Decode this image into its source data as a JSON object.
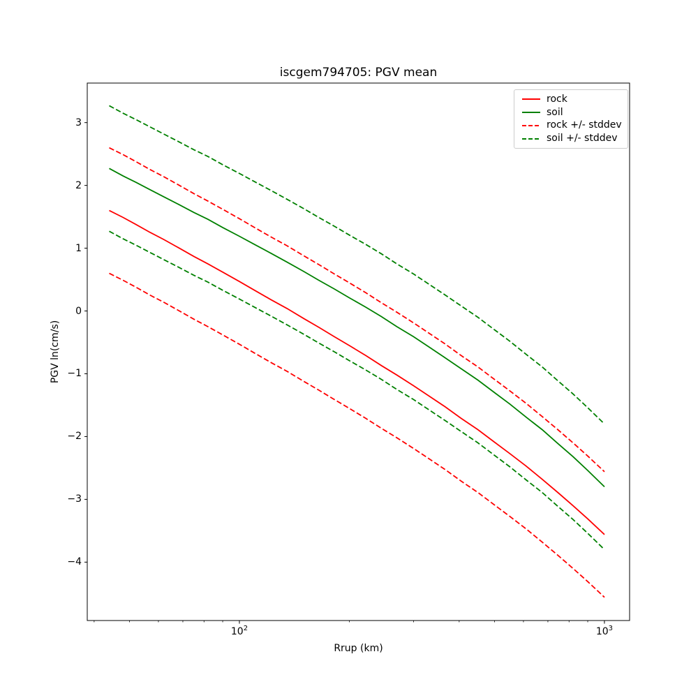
{
  "figure": {
    "title": "iscgem794705: PGV mean",
    "background_color": "#ffffff",
    "axes_edge_color": "#000000"
  },
  "chart_data": {
    "type": "line",
    "title": "iscgem794705: PGV mean",
    "xlabel": "Rrup (km)",
    "ylabel": "PGV ln(cm/s)",
    "xscale": "log",
    "yscale": "linear",
    "grid": false,
    "legend_position": "upper right",
    "xlim": [
      38.3,
      1172
    ],
    "ylim": [
      -4.93,
      3.63
    ],
    "stddev": 1.0,
    "x": [
      44,
      48,
      52,
      57,
      62,
      68,
      75,
      82,
      90,
      100,
      110,
      122,
      135,
      150,
      165,
      182,
      200,
      222,
      245,
      270,
      300,
      330,
      365,
      405,
      450,
      500,
      550,
      610,
      675,
      745,
      820,
      900,
      1000
    ],
    "series": [
      {
        "name": "rock",
        "label": "rock",
        "color": "#ff0000",
        "style": "solid",
        "values": [
          1.6,
          1.49,
          1.38,
          1.25,
          1.14,
          1.01,
          0.87,
          0.75,
          0.62,
          0.47,
          0.33,
          0.18,
          0.04,
          -0.12,
          -0.26,
          -0.41,
          -0.55,
          -0.71,
          -0.87,
          -1.02,
          -1.19,
          -1.35,
          -1.52,
          -1.71,
          -1.89,
          -2.09,
          -2.27,
          -2.47,
          -2.68,
          -2.89,
          -3.1,
          -3.31,
          -3.56
        ]
      },
      {
        "name": "soil",
        "label": "soil",
        "color": "#008000",
        "style": "solid",
        "values": [
          2.27,
          2.15,
          2.05,
          1.93,
          1.82,
          1.7,
          1.57,
          1.46,
          1.33,
          1.19,
          1.06,
          0.92,
          0.78,
          0.63,
          0.49,
          0.35,
          0.21,
          0.06,
          -0.09,
          -0.25,
          -0.41,
          -0.57,
          -0.74,
          -0.92,
          -1.1,
          -1.3,
          -1.48,
          -1.69,
          -1.89,
          -2.11,
          -2.32,
          -2.54,
          -2.8
        ]
      },
      {
        "name": "rock-plus-stddev",
        "label": "rock +/- stddev",
        "color": "#ff0000",
        "style": "dashed",
        "values": [
          2.6,
          2.49,
          2.38,
          2.25,
          2.14,
          2.01,
          1.87,
          1.75,
          1.62,
          1.47,
          1.33,
          1.18,
          1.04,
          0.88,
          0.74,
          0.59,
          0.45,
          0.29,
          0.13,
          -0.02,
          -0.19,
          -0.35,
          -0.52,
          -0.71,
          -0.89,
          -1.09,
          -1.27,
          -1.47,
          -1.68,
          -1.89,
          -2.1,
          -2.31,
          -2.56
        ]
      },
      {
        "name": "rock-minus-stddev",
        "label": "rock +/- stddev",
        "color": "#ff0000",
        "style": "dashed",
        "values": [
          0.6,
          0.49,
          0.38,
          0.25,
          0.14,
          0.01,
          -0.13,
          -0.25,
          -0.38,
          -0.53,
          -0.67,
          -0.82,
          -0.96,
          -1.12,
          -1.26,
          -1.41,
          -1.55,
          -1.71,
          -1.87,
          -2.02,
          -2.19,
          -2.35,
          -2.52,
          -2.71,
          -2.89,
          -3.09,
          -3.27,
          -3.47,
          -3.68,
          -3.89,
          -4.1,
          -4.31,
          -4.56
        ]
      },
      {
        "name": "soil-plus-stddev",
        "label": "soil +/- stddev",
        "color": "#008000",
        "style": "dashed",
        "values": [
          3.27,
          3.15,
          3.05,
          2.93,
          2.82,
          2.7,
          2.57,
          2.46,
          2.33,
          2.19,
          2.06,
          1.92,
          1.78,
          1.63,
          1.49,
          1.35,
          1.21,
          1.06,
          0.91,
          0.75,
          0.59,
          0.43,
          0.26,
          0.08,
          -0.1,
          -0.3,
          -0.48,
          -0.69,
          -0.89,
          -1.11,
          -1.32,
          -1.54,
          -1.8
        ]
      },
      {
        "name": "soil-minus-stddev",
        "label": "soil +/- stddev",
        "color": "#008000",
        "style": "dashed",
        "values": [
          1.27,
          1.15,
          1.05,
          0.93,
          0.82,
          0.7,
          0.57,
          0.46,
          0.33,
          0.19,
          0.06,
          -0.08,
          -0.22,
          -0.37,
          -0.51,
          -0.65,
          -0.79,
          -0.94,
          -1.09,
          -1.25,
          -1.41,
          -1.57,
          -1.74,
          -1.92,
          -2.1,
          -2.3,
          -2.48,
          -2.69,
          -2.89,
          -3.11,
          -3.32,
          -3.54,
          -3.8
        ]
      }
    ],
    "legend": [
      {
        "label": "rock",
        "color": "#ff0000",
        "style": "solid"
      },
      {
        "label": "soil",
        "color": "#008000",
        "style": "solid"
      },
      {
        "label": "rock +/- stddev",
        "color": "#ff0000",
        "style": "dashed"
      },
      {
        "label": "soil +/- stddev",
        "color": "#008000",
        "style": "dashed"
      }
    ],
    "x_major_ticks": [
      {
        "value": 100,
        "base": "10",
        "exp": "2"
      },
      {
        "value": 1000,
        "base": "10",
        "exp": "3"
      }
    ],
    "x_minor_ticks": [
      40,
      50,
      60,
      70,
      80,
      90,
      200,
      300,
      400,
      500,
      600,
      700,
      800,
      900
    ],
    "y_ticks": [
      {
        "value": -4,
        "label": "−4"
      },
      {
        "value": -3,
        "label": "−3"
      },
      {
        "value": -2,
        "label": "−2"
      },
      {
        "value": -1,
        "label": "−1"
      },
      {
        "value": 0,
        "label": "0"
      },
      {
        "value": 1,
        "label": "1"
      },
      {
        "value": 2,
        "label": "2"
      },
      {
        "value": 3,
        "label": "3"
      }
    ]
  }
}
